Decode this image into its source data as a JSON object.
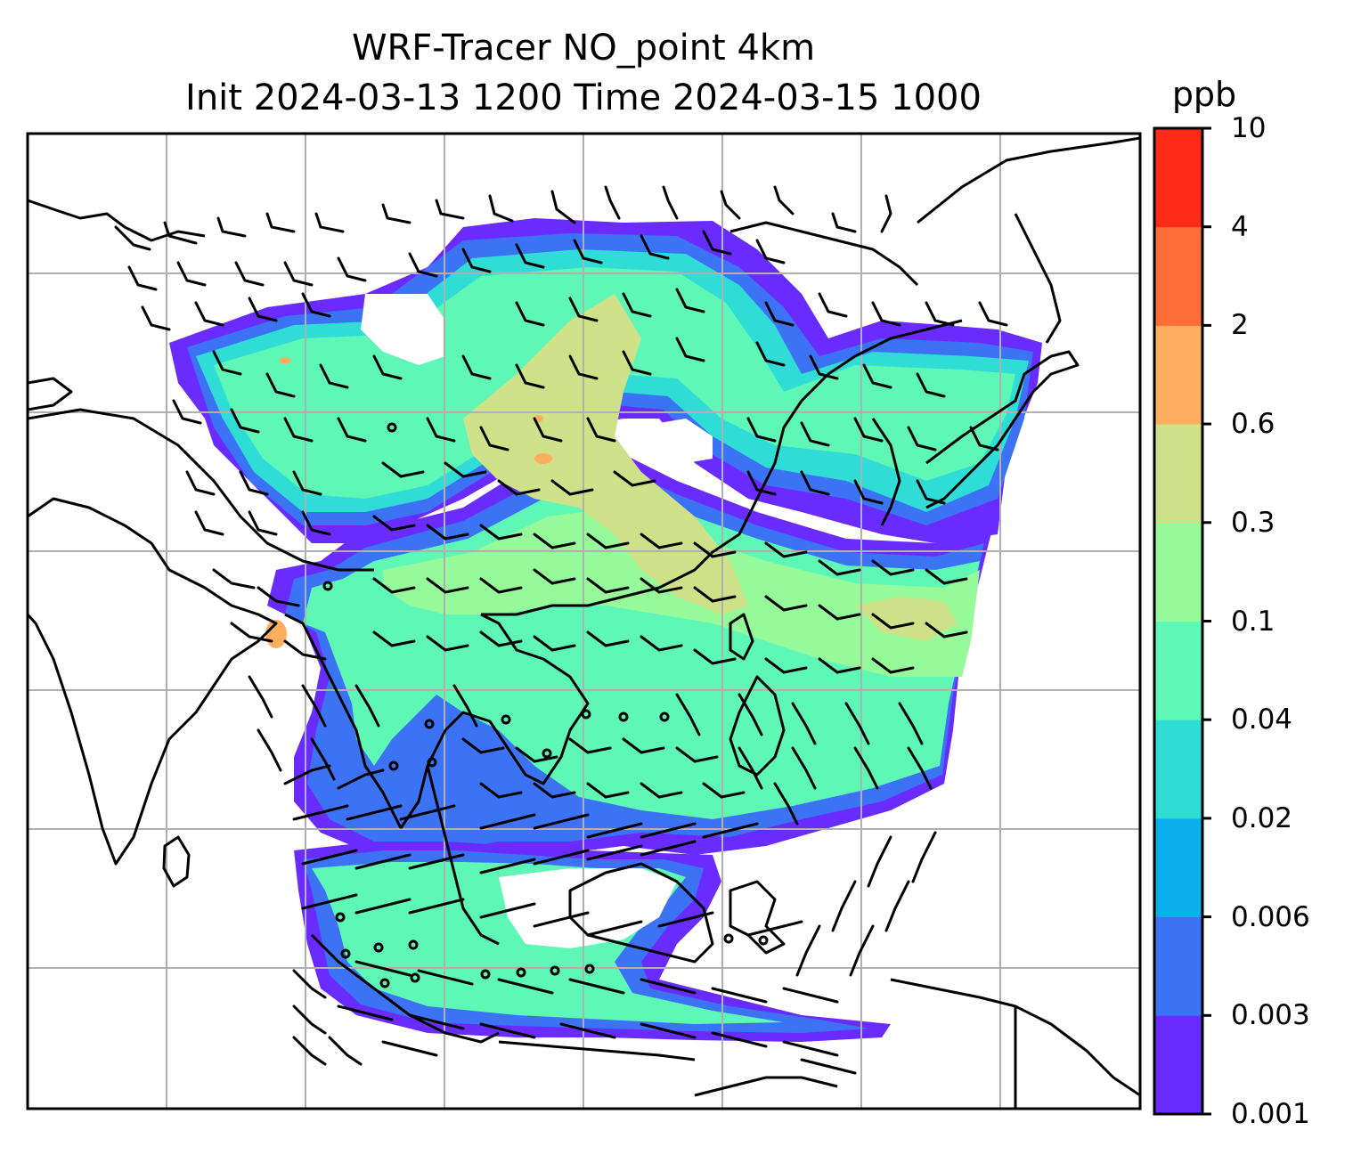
{
  "title": {
    "line1": "WRF-Tracer NO_point 4km",
    "line2": "Init 2024-03-13 1200 Time 2024-03-15 1000"
  },
  "colorbar": {
    "unit": "ppb",
    "tick_labels": [
      "0.001",
      "0.003",
      "0.006",
      "0.02",
      "0.04",
      "0.1",
      "0.3",
      "0.6",
      "2",
      "4",
      "10"
    ],
    "colors": [
      "#6a2bff",
      "#3c73f5",
      "#0ab0ea",
      "#2fdcd6",
      "#5ef7b6",
      "#96f99a",
      "#cfe188",
      "#feae5e",
      "#ff6e39",
      "#ff2a18"
    ]
  },
  "map": {
    "gridlines": true,
    "gridline_color": "#b0b0b0",
    "coastline_color": "#000000"
  }
}
